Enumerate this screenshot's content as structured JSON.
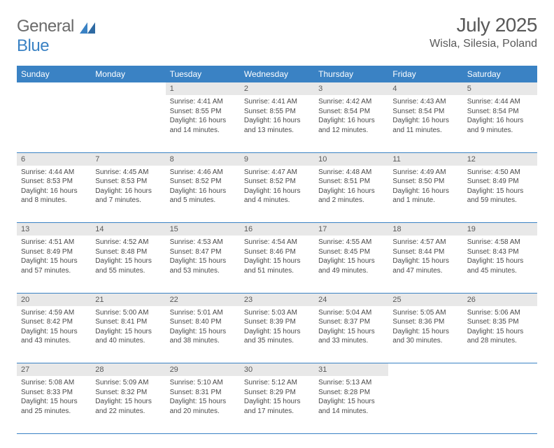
{
  "brand": {
    "part1": "General",
    "part2": "Blue"
  },
  "title": "July 2025",
  "location": "Wisla, Silesia, Poland",
  "colors": {
    "accent": "#3a82c4",
    "header_text": "#ffffff",
    "daynum_bg": "#e8e8e8",
    "body_text": "#4a4a4a",
    "muted_text": "#595959",
    "page_bg": "#ffffff"
  },
  "typography": {
    "title_fontsize": 28,
    "location_fontsize": 16,
    "dayheader_fontsize": 12,
    "daynum_fontsize": 11,
    "cell_fontsize": 10
  },
  "layout": {
    "columns": 7,
    "weeks": 5,
    "start_day_index": 2
  },
  "day_headers": [
    "Sunday",
    "Monday",
    "Tuesday",
    "Wednesday",
    "Thursday",
    "Friday",
    "Saturday"
  ],
  "days": [
    {
      "n": 1,
      "sunrise": "4:41 AM",
      "sunset": "8:55 PM",
      "daylight": "16 hours and 14 minutes."
    },
    {
      "n": 2,
      "sunrise": "4:41 AM",
      "sunset": "8:55 PM",
      "daylight": "16 hours and 13 minutes."
    },
    {
      "n": 3,
      "sunrise": "4:42 AM",
      "sunset": "8:54 PM",
      "daylight": "16 hours and 12 minutes."
    },
    {
      "n": 4,
      "sunrise": "4:43 AM",
      "sunset": "8:54 PM",
      "daylight": "16 hours and 11 minutes."
    },
    {
      "n": 5,
      "sunrise": "4:44 AM",
      "sunset": "8:54 PM",
      "daylight": "16 hours and 9 minutes."
    },
    {
      "n": 6,
      "sunrise": "4:44 AM",
      "sunset": "8:53 PM",
      "daylight": "16 hours and 8 minutes."
    },
    {
      "n": 7,
      "sunrise": "4:45 AM",
      "sunset": "8:53 PM",
      "daylight": "16 hours and 7 minutes."
    },
    {
      "n": 8,
      "sunrise": "4:46 AM",
      "sunset": "8:52 PM",
      "daylight": "16 hours and 5 minutes."
    },
    {
      "n": 9,
      "sunrise": "4:47 AM",
      "sunset": "8:52 PM",
      "daylight": "16 hours and 4 minutes."
    },
    {
      "n": 10,
      "sunrise": "4:48 AM",
      "sunset": "8:51 PM",
      "daylight": "16 hours and 2 minutes."
    },
    {
      "n": 11,
      "sunrise": "4:49 AM",
      "sunset": "8:50 PM",
      "daylight": "16 hours and 1 minute."
    },
    {
      "n": 12,
      "sunrise": "4:50 AM",
      "sunset": "8:49 PM",
      "daylight": "15 hours and 59 minutes."
    },
    {
      "n": 13,
      "sunrise": "4:51 AM",
      "sunset": "8:49 PM",
      "daylight": "15 hours and 57 minutes."
    },
    {
      "n": 14,
      "sunrise": "4:52 AM",
      "sunset": "8:48 PM",
      "daylight": "15 hours and 55 minutes."
    },
    {
      "n": 15,
      "sunrise": "4:53 AM",
      "sunset": "8:47 PM",
      "daylight": "15 hours and 53 minutes."
    },
    {
      "n": 16,
      "sunrise": "4:54 AM",
      "sunset": "8:46 PM",
      "daylight": "15 hours and 51 minutes."
    },
    {
      "n": 17,
      "sunrise": "4:55 AM",
      "sunset": "8:45 PM",
      "daylight": "15 hours and 49 minutes."
    },
    {
      "n": 18,
      "sunrise": "4:57 AM",
      "sunset": "8:44 PM",
      "daylight": "15 hours and 47 minutes."
    },
    {
      "n": 19,
      "sunrise": "4:58 AM",
      "sunset": "8:43 PM",
      "daylight": "15 hours and 45 minutes."
    },
    {
      "n": 20,
      "sunrise": "4:59 AM",
      "sunset": "8:42 PM",
      "daylight": "15 hours and 43 minutes."
    },
    {
      "n": 21,
      "sunrise": "5:00 AM",
      "sunset": "8:41 PM",
      "daylight": "15 hours and 40 minutes."
    },
    {
      "n": 22,
      "sunrise": "5:01 AM",
      "sunset": "8:40 PM",
      "daylight": "15 hours and 38 minutes."
    },
    {
      "n": 23,
      "sunrise": "5:03 AM",
      "sunset": "8:39 PM",
      "daylight": "15 hours and 35 minutes."
    },
    {
      "n": 24,
      "sunrise": "5:04 AM",
      "sunset": "8:37 PM",
      "daylight": "15 hours and 33 minutes."
    },
    {
      "n": 25,
      "sunrise": "5:05 AM",
      "sunset": "8:36 PM",
      "daylight": "15 hours and 30 minutes."
    },
    {
      "n": 26,
      "sunrise": "5:06 AM",
      "sunset": "8:35 PM",
      "daylight": "15 hours and 28 minutes."
    },
    {
      "n": 27,
      "sunrise": "5:08 AM",
      "sunset": "8:33 PM",
      "daylight": "15 hours and 25 minutes."
    },
    {
      "n": 28,
      "sunrise": "5:09 AM",
      "sunset": "8:32 PM",
      "daylight": "15 hours and 22 minutes."
    },
    {
      "n": 29,
      "sunrise": "5:10 AM",
      "sunset": "8:31 PM",
      "daylight": "15 hours and 20 minutes."
    },
    {
      "n": 30,
      "sunrise": "5:12 AM",
      "sunset": "8:29 PM",
      "daylight": "15 hours and 17 minutes."
    },
    {
      "n": 31,
      "sunrise": "5:13 AM",
      "sunset": "8:28 PM",
      "daylight": "15 hours and 14 minutes."
    }
  ],
  "labels": {
    "sunrise_prefix": "Sunrise: ",
    "sunset_prefix": "Sunset: ",
    "daylight_prefix": "Daylight: "
  }
}
